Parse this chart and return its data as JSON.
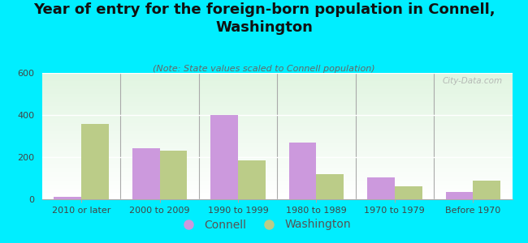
{
  "title": "Year of entry for the foreign-born population in Connell,\nWashington",
  "subtitle": "(Note: State values scaled to Connell population)",
  "categories": [
    "2010 or later",
    "2000 to 2009",
    "1990 to 1999",
    "1980 to 1989",
    "1970 to 1979",
    "Before 1970"
  ],
  "connell_values": [
    10,
    242,
    400,
    268,
    105,
    35
  ],
  "washington_values": [
    358,
    230,
    185,
    120,
    62,
    88
  ],
  "connell_color": "#cc99dd",
  "washington_color": "#bbcc88",
  "background_color": "#00eeff",
  "ylim": [
    0,
    600
  ],
  "yticks": [
    0,
    200,
    400,
    600
  ],
  "watermark": "City-Data.com",
  "bar_width": 0.35,
  "title_fontsize": 13,
  "subtitle_fontsize": 8,
  "legend_fontsize": 10,
  "tick_fontsize": 8
}
